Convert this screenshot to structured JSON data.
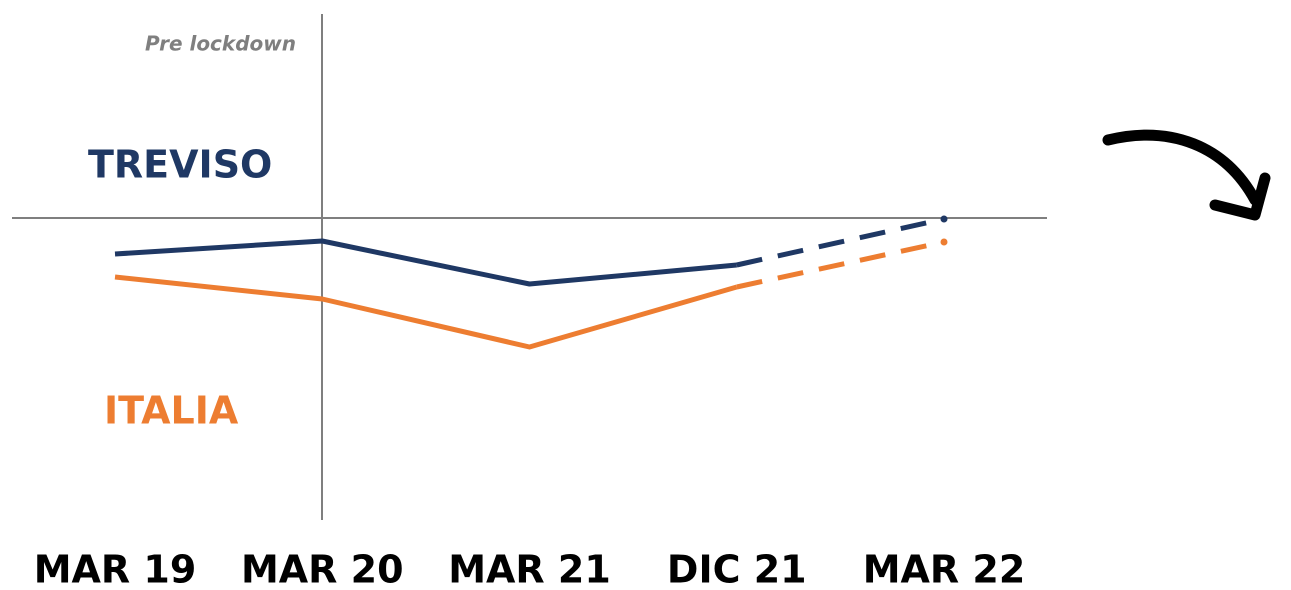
{
  "chart_data": {
    "type": "line",
    "annotation": "Pre lockdown",
    "categories": [
      "MAR 19",
      "MAR 20",
      "MAR 21",
      "DIC 21",
      "MAR 22"
    ],
    "series": [
      {
        "name": "TREVISO",
        "color": "#1f3864",
        "values": [
          -3.6,
          -2.3,
          -6.6,
          -4.7,
          -0.1
        ]
      },
      {
        "name": "ITALIA",
        "color": "#ed7d31",
        "values": [
          -5.9,
          -8.1,
          -12.9,
          -6.9,
          -2.4
        ]
      }
    ],
    "dashed_from_index": 3,
    "ylim": [
      -30,
      20
    ]
  }
}
